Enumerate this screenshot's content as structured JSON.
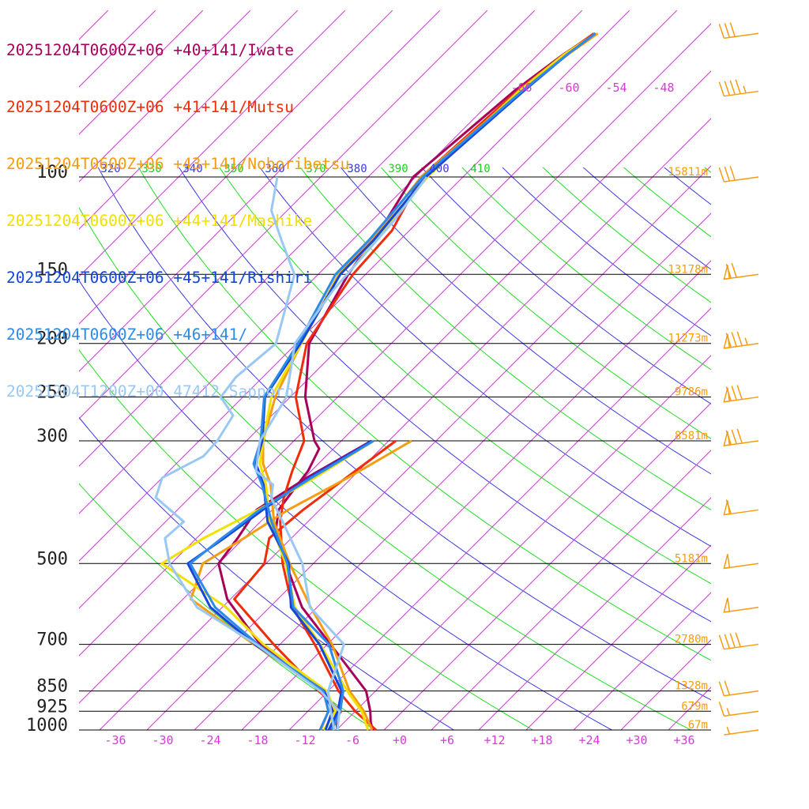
{
  "chart_data": {
    "type": "line",
    "diagram": "skew-T log-p",
    "legend": [
      {
        "label": "20251204T0600Z+06 +40+141/Iwate",
        "color": "#a8005a"
      },
      {
        "label": "20251204T0600Z+06 +41+141/Mutsu",
        "color": "#f02d0a"
      },
      {
        "label": "20251204T0600Z+06 +43+141/Noboribetsu",
        "color": "#f59d10"
      },
      {
        "label": "20251204T0600Z+06 +44+141/Mashike",
        "color": "#f2e000"
      },
      {
        "label": "20251204T0600Z+06 +45+141/Rishiri",
        "color": "#1447d8"
      },
      {
        "label": "20251204T0600Z+06 +46+141/",
        "color": "#2e8ae8"
      },
      {
        "label": "20251204T1200Z+00 47412_Sapporo",
        "color": "#9ac8f5"
      }
    ],
    "pressure_levels": [
      100,
      150,
      200,
      250,
      300,
      500,
      700,
      850,
      925,
      1000
    ],
    "pressure_labels": [
      "100",
      "150",
      "200",
      "250",
      "300",
      "500",
      "700",
      "850",
      "925",
      "1000"
    ],
    "heights": [
      {
        "p": 100,
        "label": "15811m"
      },
      {
        "p": 150,
        "label": "13178m"
      },
      {
        "p": 200,
        "label": "11273m"
      },
      {
        "p": 250,
        "label": "9786m"
      },
      {
        "p": 300,
        "label": "8581m"
      },
      {
        "p": 500,
        "label": "5181m"
      },
      {
        "p": 700,
        "label": "2780m"
      },
      {
        "p": 850,
        "label": "1328m"
      },
      {
        "p": 925,
        "label": "679m"
      },
      {
        "p": 1000,
        "label": "67m"
      }
    ],
    "x_ticks": [
      "-36",
      "-30",
      "-24",
      "-18",
      "-12",
      "-6",
      "+0",
      "+6",
      "+12",
      "+18",
      "+24",
      "+30",
      "+36"
    ],
    "x_tick_values": [
      -36,
      -30,
      -24,
      -18,
      -12,
      -6,
      0,
      6,
      12,
      18,
      24,
      30,
      36
    ],
    "top_temp_labels": [
      "-66",
      "-60",
      "-54",
      "-48"
    ],
    "theta_labels": [
      {
        "value": "320",
        "color": "#3a3ae0"
      },
      {
        "value": "330",
        "color": "#22cc22"
      },
      {
        "value": "340",
        "color": "#3a3ae0"
      },
      {
        "value": "350",
        "color": "#22cc22"
      },
      {
        "value": "360",
        "color": "#3a3ae0"
      },
      {
        "value": "370",
        "color": "#22cc22"
      },
      {
        "value": "380",
        "color": "#3a3ae0"
      },
      {
        "value": "390",
        "color": "#22cc22"
      },
      {
        "value": "400",
        "color": "#3a3ae0"
      },
      {
        "value": "410",
        "color": "#22cc22"
      }
    ],
    "series": [
      {
        "name": "20251204T0600Z+06 +40+141/Iwate",
        "kind": "temperature",
        "color": "#a8005a",
        "points": [
          [
            1000,
            -3.4
          ],
          [
            970,
            -4.6
          ],
          [
            925,
            -6.1
          ],
          [
            850,
            -9.2
          ],
          [
            700,
            -19.6
          ],
          [
            600,
            -27.9
          ],
          [
            500,
            -35.5
          ],
          [
            430,
            -41.3
          ],
          [
            400,
            -43.2
          ],
          [
            370,
            -43.8
          ],
          [
            340,
            -44.4
          ],
          [
            310,
            -45.8
          ],
          [
            300,
            -47.4
          ],
          [
            250,
            -54.1
          ],
          [
            200,
            -60.4
          ],
          [
            150,
            -64.2
          ],
          [
            120,
            -66.2
          ],
          [
            100,
            -68.3
          ],
          [
            70,
            -66.4
          ],
          [
            60,
            -64.8
          ],
          [
            55,
            -63.4
          ]
        ]
      },
      {
        "name": "20251204T0600Z+06 +40+141/Iwate",
        "kind": "dewpoint",
        "color": "#a8005a",
        "points": [
          [
            300,
            -40.2
          ],
          [
            350,
            -43.7
          ],
          [
            400,
            -46.0
          ],
          [
            450,
            -44.8
          ],
          [
            500,
            -44.0
          ],
          [
            580,
            -38.4
          ],
          [
            700,
            -28.5
          ],
          [
            850,
            -15.0
          ],
          [
            925,
            -10.5
          ],
          [
            1000,
            -7.9
          ]
        ]
      },
      {
        "name": "20251204T0600Z+06 +41+141/Mutsu",
        "kind": "temperature",
        "color": "#f02d0a",
        "points": [
          [
            1000,
            -3.0
          ],
          [
            950,
            -6.3
          ],
          [
            925,
            -8.0
          ],
          [
            850,
            -12.7
          ],
          [
            700,
            -21.6
          ],
          [
            600,
            -29.1
          ],
          [
            500,
            -35.9
          ],
          [
            420,
            -41.5
          ],
          [
            380,
            -44.1
          ],
          [
            340,
            -46.4
          ],
          [
            300,
            -48.7
          ],
          [
            250,
            -55.3
          ],
          [
            200,
            -60.7
          ],
          [
            150,
            -63.6
          ],
          [
            125,
            -64.2
          ],
          [
            100,
            -67.3
          ],
          [
            70,
            -66.0
          ],
          [
            60,
            -64.7
          ],
          [
            55,
            -63.6
          ]
        ]
      },
      {
        "name": "20251204T0600Z+06 +41+141/Mutsu",
        "kind": "dewpoint",
        "color": "#f02d0a",
        "points": [
          [
            300,
            -37.1
          ],
          [
            400,
            -40.1
          ],
          [
            450,
            -40.8
          ],
          [
            500,
            -38.2
          ],
          [
            580,
            -37.5
          ],
          [
            700,
            -26.8
          ],
          [
            850,
            -15.2
          ],
          [
            925,
            -9.8
          ],
          [
            1000,
            -9.0
          ]
        ]
      },
      {
        "name": "20251204T0600Z+06 +43+141/Noboribetsu",
        "kind": "temperature",
        "color": "#f59d10",
        "points": [
          [
            1000,
            -3.5
          ],
          [
            925,
            -6.9
          ],
          [
            850,
            -11.3
          ],
          [
            700,
            -19.4
          ],
          [
            600,
            -26.8
          ],
          [
            500,
            -35.0
          ],
          [
            420,
            -42.3
          ],
          [
            360,
            -47.4
          ],
          [
            330,
            -51.0
          ],
          [
            300,
            -53.9
          ],
          [
            250,
            -57.9
          ],
          [
            200,
            -61.4
          ],
          [
            150,
            -65.4
          ],
          [
            130,
            -65.6
          ],
          [
            100,
            -67.3
          ],
          [
            70,
            -65.5
          ],
          [
            60,
            -64.2
          ],
          [
            55,
            -63.1
          ]
        ]
      },
      {
        "name": "20251204T0600Z+06 +43+141/Noboribetsu",
        "kind": "dewpoint",
        "color": "#f59d10",
        "points": [
          [
            300,
            -35.1
          ],
          [
            350,
            -38.5
          ],
          [
            400,
            -42.0
          ],
          [
            450,
            -44.0
          ],
          [
            500,
            -46.0
          ],
          [
            580,
            -43.0
          ],
          [
            700,
            -29.3
          ],
          [
            850,
            -14.6
          ],
          [
            925,
            -11.4
          ],
          [
            1000,
            -10.0
          ]
        ]
      },
      {
        "name": "20251204T0600Z+06 +44+141/Mashike",
        "kind": "temperature",
        "color": "#f2e000",
        "points": [
          [
            1000,
            -4.0
          ],
          [
            925,
            -7.2
          ],
          [
            850,
            -11.6
          ],
          [
            700,
            -20.9
          ],
          [
            600,
            -28.8
          ],
          [
            500,
            -35.5
          ],
          [
            420,
            -42.8
          ],
          [
            360,
            -48.0
          ],
          [
            330,
            -51.4
          ],
          [
            300,
            -53.9
          ],
          [
            250,
            -58.4
          ],
          [
            200,
            -61.4
          ],
          [
            150,
            -65.3
          ],
          [
            130,
            -65.0
          ],
          [
            100,
            -66.5
          ],
          [
            70,
            -65.8
          ],
          [
            60,
            -64.7
          ],
          [
            55,
            -63.3
          ]
        ]
      },
      {
        "name": "20251204T0600Z+06 +44+141/Mashike",
        "kind": "dewpoint",
        "color": "#f2e000",
        "points": [
          [
            300,
            -39.9
          ],
          [
            350,
            -42.7
          ],
          [
            400,
            -45.8
          ],
          [
            450,
            -49.1
          ],
          [
            500,
            -51.2
          ],
          [
            600,
            -37.5
          ],
          [
            700,
            -28.1
          ],
          [
            850,
            -14.2
          ],
          [
            925,
            -10.5
          ],
          [
            1000,
            -9.6
          ]
        ]
      },
      {
        "name": "20251204T0600Z+06 +45+141/Rishiri",
        "kind": "temperature",
        "color": "#1447d8",
        "points": [
          [
            1000,
            -9.0
          ],
          [
            925,
            -10.2
          ],
          [
            850,
            -12.3
          ],
          [
            700,
            -21.0
          ],
          [
            600,
            -29.3
          ],
          [
            500,
            -35.1
          ],
          [
            420,
            -43.1
          ],
          [
            360,
            -48.3
          ],
          [
            330,
            -51.9
          ],
          [
            300,
            -54.0
          ],
          [
            250,
            -59.2
          ],
          [
            200,
            -61.5
          ],
          [
            150,
            -65.2
          ],
          [
            130,
            -65.3
          ],
          [
            100,
            -66.7
          ],
          [
            70,
            -65.2
          ],
          [
            60,
            -64.3
          ],
          [
            55,
            -63.4
          ]
        ]
      },
      {
        "name": "20251204T0600Z+06 +45+141/Rishiri",
        "kind": "dewpoint",
        "color": "#1447d8",
        "points": [
          [
            300,
            -40.1
          ],
          [
            350,
            -43.4
          ],
          [
            400,
            -45.2
          ],
          [
            450,
            -46.5
          ],
          [
            500,
            -47.9
          ],
          [
            600,
            -39.5
          ],
          [
            700,
            -29.2
          ],
          [
            850,
            -14.5
          ],
          [
            925,
            -10.9
          ],
          [
            1000,
            -9.4
          ]
        ]
      },
      {
        "name": "20251204T0600Z+06 +46+141/",
        "kind": "temperature",
        "color": "#2e8ae8",
        "points": [
          [
            1000,
            -8.6
          ],
          [
            925,
            -9.9
          ],
          [
            850,
            -12.1
          ],
          [
            700,
            -19.8
          ],
          [
            600,
            -29.0
          ],
          [
            500,
            -35.3
          ],
          [
            420,
            -42.6
          ],
          [
            360,
            -48.5
          ],
          [
            330,
            -52.2
          ],
          [
            300,
            -54.2
          ],
          [
            250,
            -59.3
          ],
          [
            200,
            -61.8
          ],
          [
            150,
            -65.8
          ],
          [
            130,
            -65.9
          ],
          [
            100,
            -67.1
          ],
          [
            70,
            -65.4
          ],
          [
            60,
            -64.3
          ],
          [
            55,
            -63.4
          ]
        ]
      },
      {
        "name": "20251204T0600Z+06 +46+141/",
        "kind": "dewpoint",
        "color": "#2e8ae8",
        "points": [
          [
            300,
            -39.9
          ],
          [
            350,
            -43.1
          ],
          [
            400,
            -45.6
          ],
          [
            450,
            -46.8
          ],
          [
            500,
            -47.6
          ],
          [
            600,
            -38.9
          ],
          [
            700,
            -28.8
          ],
          [
            850,
            -14.6
          ],
          [
            925,
            -11.4
          ],
          [
            1000,
            -10.1
          ]
        ]
      },
      {
        "name": "20251204T1200Z+00 47412_Sapporo",
        "kind": "temperature",
        "color": "#9ac8f5",
        "points": [
          [
            1000,
            -8.3
          ],
          [
            925,
            -11.1
          ],
          [
            850,
            -14.0
          ],
          [
            700,
            -17.9
          ],
          [
            600,
            -26.9
          ],
          [
            500,
            -33.4
          ],
          [
            420,
            -41.2
          ],
          [
            380,
            -45.7
          ],
          [
            360,
            -47.1
          ],
          [
            340,
            -51.0
          ],
          [
            300,
            -54.3
          ],
          [
            250,
            -56.5
          ],
          [
            200,
            -62.2
          ],
          [
            160,
            -64.1
          ],
          [
            120,
            -65.2
          ],
          [
            100,
            -66.6
          ]
        ]
      },
      {
        "name": "20251204T1200Z+00 47412_Sapporo",
        "kind": "dewpoint",
        "color": "#9ac8f5",
        "points": [
          [
            1000,
            -7.9
          ],
          [
            925,
            -10.0
          ],
          [
            850,
            -15.0
          ],
          [
            700,
            -29.0
          ],
          [
            600,
            -41.2
          ],
          [
            500,
            -50.2
          ],
          [
            450,
            -54.0
          ],
          [
            420,
            -53.7
          ],
          [
            380,
            -60.3
          ],
          [
            350,
            -62.0
          ],
          [
            320,
            -59.5
          ],
          [
            300,
            -59.7
          ],
          [
            270,
            -60.9
          ],
          [
            250,
            -64.8
          ],
          [
            230,
            -65.4
          ],
          [
            200,
            -64.6
          ],
          [
            170,
            -68.2
          ],
          [
            150,
            -71.0
          ],
          [
            130,
            -77.0
          ],
          [
            115,
            -82.0
          ],
          [
            100,
            -85.5
          ]
        ]
      }
    ],
    "wind_barbs": [
      {
        "p": 1000,
        "speed": 5,
        "dir": 270
      },
      {
        "p": 925,
        "speed": 15,
        "dir": 270
      },
      {
        "p": 850,
        "speed": 20,
        "dir": 275
      },
      {
        "p": 700,
        "speed": 40,
        "dir": 275
      },
      {
        "p": 600,
        "speed": 50,
        "dir": 275
      },
      {
        "p": 500,
        "speed": 50,
        "dir": 275
      },
      {
        "p": 400,
        "speed": 60,
        "dir": 280
      },
      {
        "p": 300,
        "speed": 80,
        "dir": 280
      },
      {
        "p": 250,
        "speed": 80,
        "dir": 280
      },
      {
        "p": 200,
        "speed": 85,
        "dir": 280
      },
      {
        "p": 150,
        "speed": 70,
        "dir": 285
      },
      {
        "p": 100,
        "speed": 30,
        "dir": 290
      },
      {
        "p": 70,
        "speed": 45,
        "dir": 290
      },
      {
        "p": 55,
        "speed": 30,
        "dir": 300
      }
    ],
    "colors": {
      "isotherm": "#d63ad6",
      "theta_blue": "#3a3ae0",
      "theta_green": "#22dd22",
      "isobar": "#000000",
      "barb": "#f59d10",
      "height_label": "#f59d10",
      "axis_label": "#d63ad6"
    }
  }
}
